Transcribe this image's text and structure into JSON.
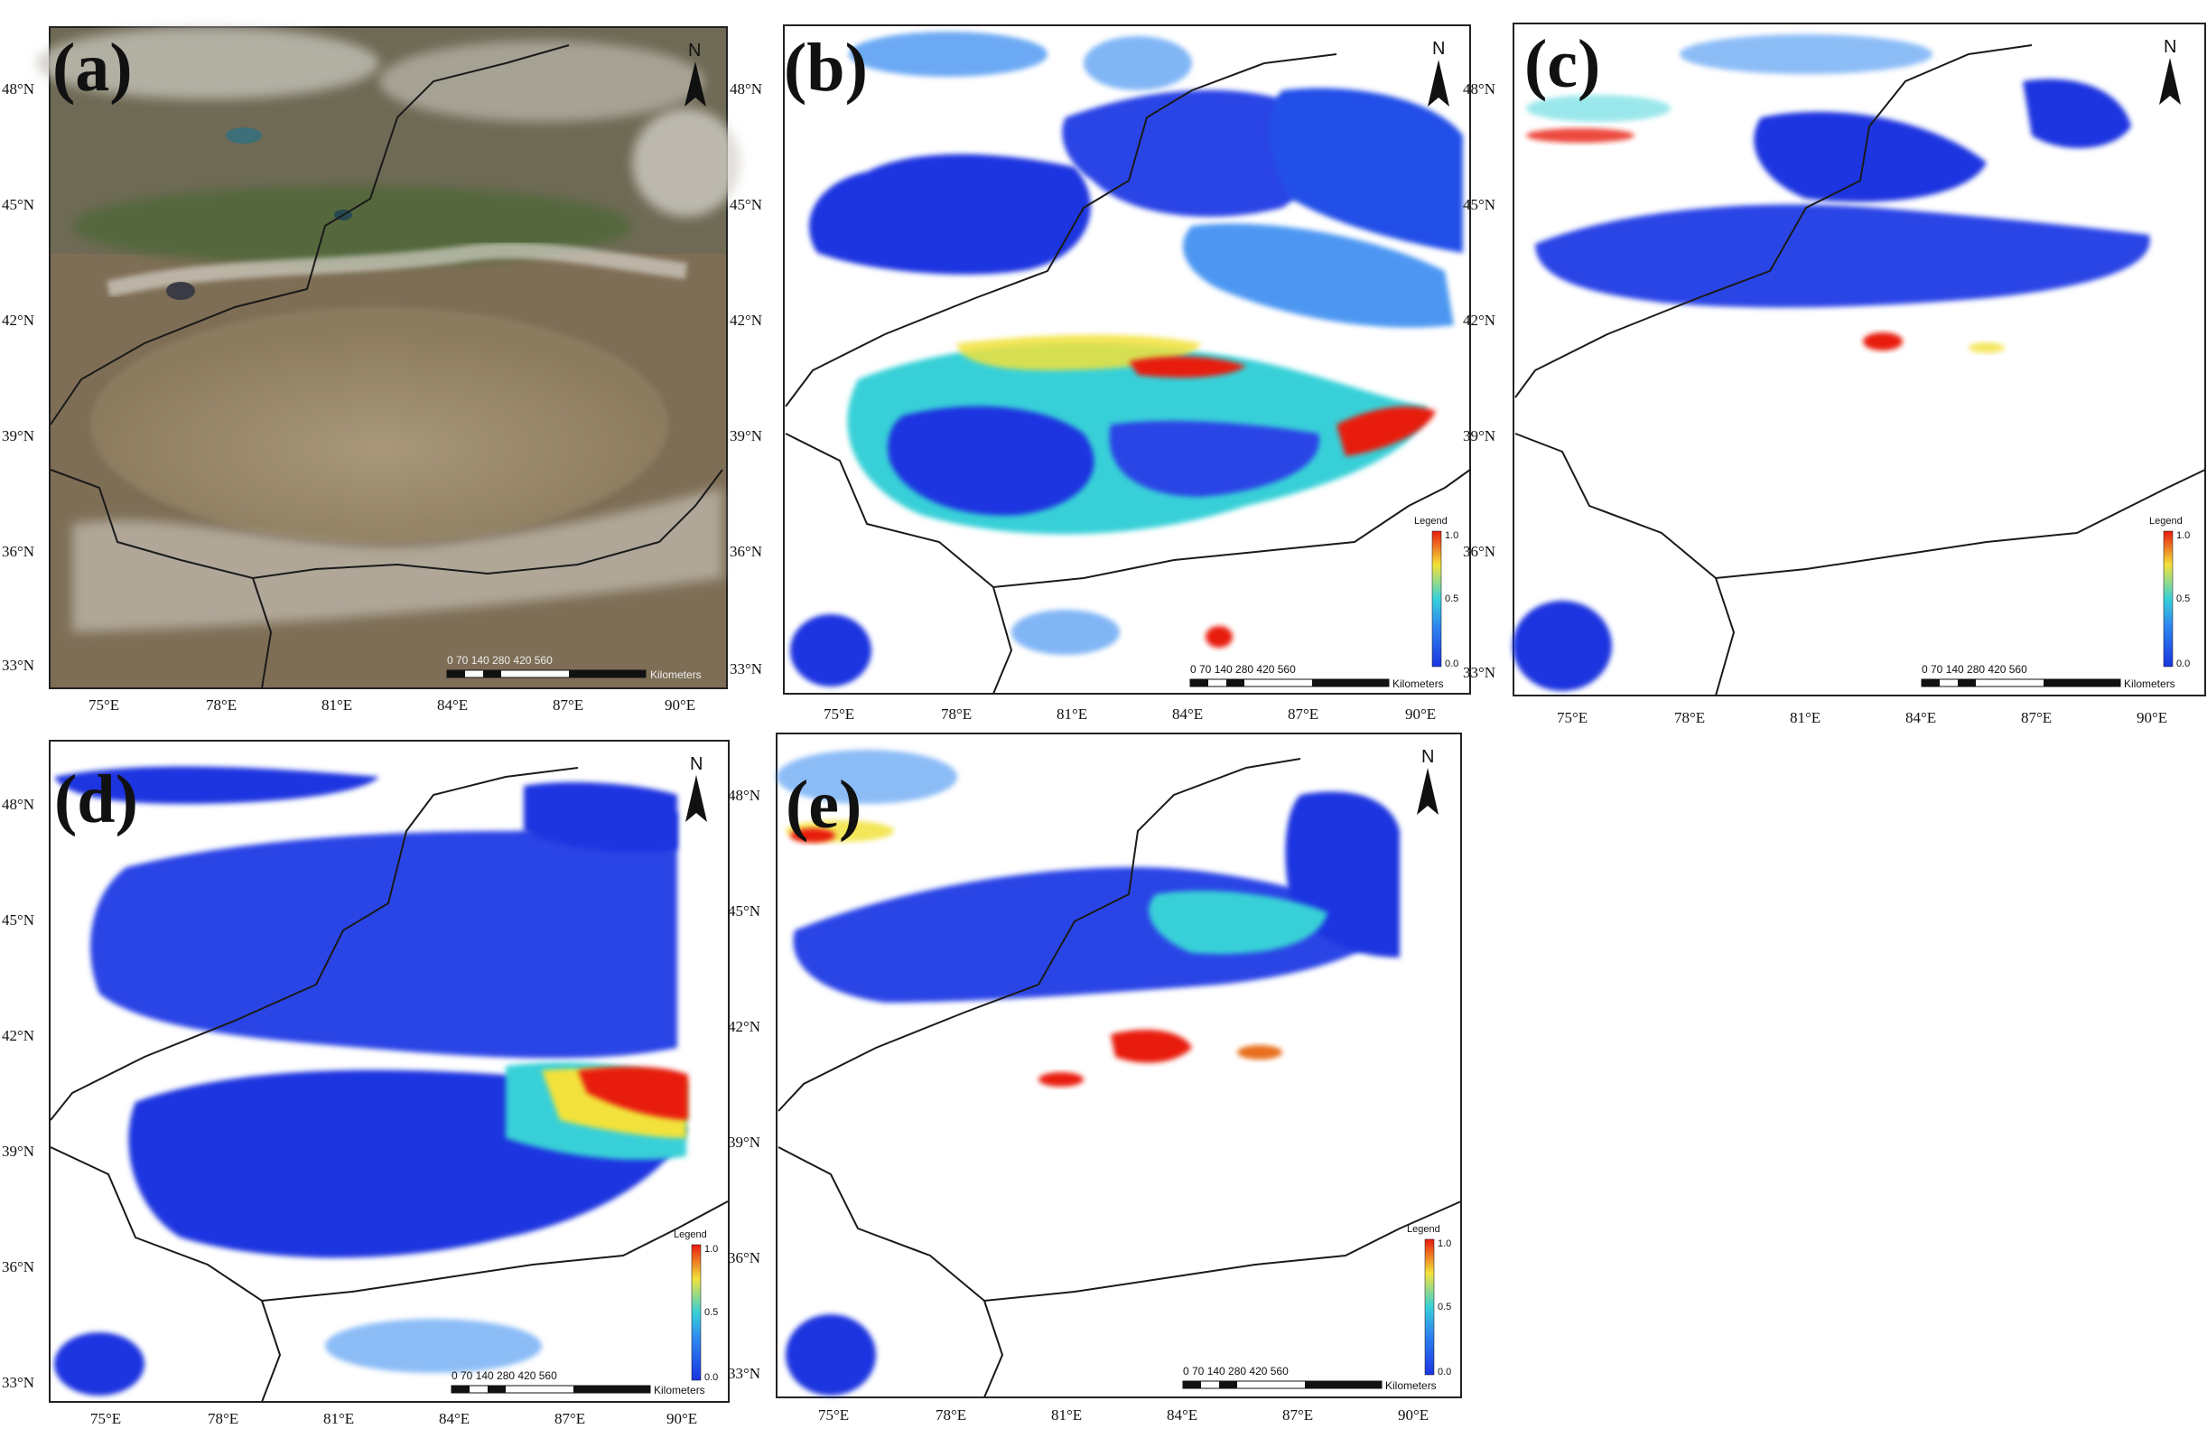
{
  "colors": {
    "low": "#1a35e0",
    "mid_low": "#2f86f0",
    "mid": "#37d0d8",
    "mid_high": "#f2e23a",
    "high": "#e81c10",
    "satellite_desert": "#9c8a6c",
    "satellite_mountain": "#6b5d46",
    "satellite_veg": "#55683c",
    "border": "#1a1a1a"
  },
  "icons": [
    "north-arrow-icon",
    "scale-bar-icon",
    "legend-colorbar-icon"
  ],
  "panels": [
    {
      "letter": "(a)",
      "type": "true-color satellite image",
      "lat_labels": [
        "48°N",
        "45°N",
        "42°N",
        "39°N",
        "36°N",
        "33°N"
      ],
      "lon_labels": [
        "75°E",
        "78°E",
        "81°E",
        "84°E",
        "87°E",
        "90°E"
      ],
      "north": "N",
      "scale_numbers": "0  70 140      280      420      560",
      "scale_unit": "Kilometers"
    },
    {
      "letter": "(b)",
      "type": "AOD map",
      "lat_labels": [
        "48°N",
        "45°N",
        "42°N",
        "39°N",
        "36°N",
        "33°N"
      ],
      "lon_labels": [
        "75°E",
        "78°E",
        "81°E",
        "84°E",
        "87°E",
        "90°E"
      ],
      "north": "N",
      "legend_title": "Legend",
      "legend_max": "1.0",
      "legend_mid": "0.5",
      "legend_min": "0.0",
      "scale_numbers": "0  70 140      280      420      560",
      "scale_unit": "Kilometers"
    },
    {
      "letter": "(c)",
      "type": "AOD map",
      "lat_labels": [
        "48°N",
        "45°N",
        "42°N",
        "39°N",
        "36°N",
        "33°N"
      ],
      "lon_labels": [
        "75°E",
        "78°E",
        "81°E",
        "84°E",
        "87°E",
        "90°E"
      ],
      "north": "N",
      "legend_title": "Legend",
      "legend_max": "1.0",
      "legend_mid": "0.5",
      "legend_min": "0.0",
      "scale_numbers": "0  70 140      280      420      560",
      "scale_unit": "Kilometers"
    },
    {
      "letter": "(d)",
      "type": "AOD map",
      "lat_labels": [
        "48°N",
        "45°N",
        "42°N",
        "39°N",
        "36°N",
        "33°N"
      ],
      "lon_labels": [
        "75°E",
        "78°E",
        "81°E",
        "84°E",
        "87°E",
        "90°E"
      ],
      "north": "N",
      "legend_title": "Legend",
      "legend_max": "1.0",
      "legend_mid": "0.5",
      "legend_min": "0.0",
      "scale_numbers": "0  70 140      280      420      560",
      "scale_unit": "Kilometers"
    },
    {
      "letter": "(e)",
      "type": "AOD map",
      "lat_labels": [
        "48°N",
        "45°N",
        "42°N",
        "39°N",
        "36°N",
        "33°N"
      ],
      "lon_labels": [
        "75°E",
        "78°E",
        "81°E",
        "84°E",
        "87°E",
        "90°E"
      ],
      "north": "N",
      "legend_title": "Legend",
      "legend_max": "1.0",
      "legend_mid": "0.5",
      "legend_min": "0.0",
      "scale_numbers": "0  70 140      280      420      560",
      "scale_unit": "Kilometers"
    }
  ]
}
